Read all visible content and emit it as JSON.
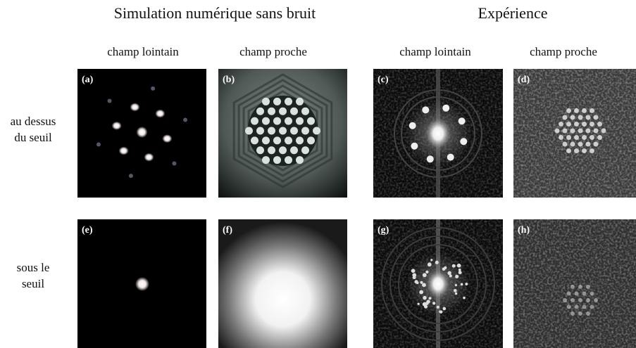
{
  "headers": [
    "Simulation numérique sans bruit",
    "Expérience"
  ],
  "columns": [
    "champ lointain",
    "champ proche",
    "champ lointain",
    "champ proche"
  ],
  "rows": [
    {
      "lines": [
        "au dessus",
        "du seuil"
      ]
    },
    {
      "lines": [
        "sous le",
        "seuil"
      ]
    }
  ],
  "panels": [
    "(a)",
    "(b)",
    "(c)",
    "(d)",
    "(e)",
    "(f)",
    "(g)",
    "(h)"
  ]
}
